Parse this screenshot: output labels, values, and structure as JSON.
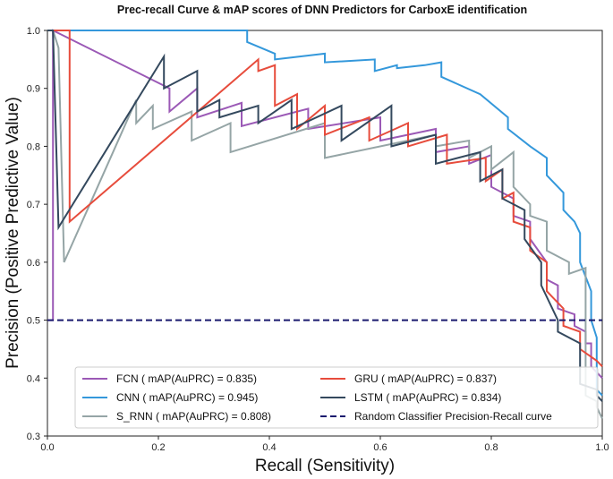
{
  "chart_data": {
    "type": "line",
    "title": "Prec-recall Curve & mAP scores of DNN Predictors for CarboxE identification",
    "xlabel": "Recall (Sensitivity)",
    "ylabel": "Precision (Positive Predictive Value)",
    "xlim": [
      0.0,
      1.0
    ],
    "ylim": [
      0.3,
      1.0
    ],
    "xticks": [
      "0.0",
      "0.2",
      "0.4",
      "0.6",
      "0.8",
      "1.0"
    ],
    "yticks": [
      "0.3",
      "0.4",
      "0.5",
      "0.6",
      "0.7",
      "0.8",
      "0.9",
      "1.0"
    ],
    "grid": false,
    "legend_position": "lower-center",
    "series": [
      {
        "name": "FCN ( mAP(AuPRC) = 0.835)",
        "color": "#9b59b6",
        "x": [
          0.0,
          0.01,
          0.01,
          0.22,
          0.22,
          0.27,
          0.27,
          0.35,
          0.35,
          0.47,
          0.47,
          0.6,
          0.6,
          0.7,
          0.7,
          0.76,
          0.76,
          0.8,
          0.8,
          0.84,
          0.84,
          0.87,
          0.87,
          0.9,
          0.9,
          0.92,
          0.92,
          0.95,
          0.95,
          0.97,
          0.97,
          0.98,
          0.98,
          1.0
        ],
        "y": [
          0.5,
          0.5,
          1.0,
          0.9,
          0.86,
          0.9,
          0.85,
          0.875,
          0.835,
          0.865,
          0.83,
          0.85,
          0.81,
          0.83,
          0.79,
          0.8,
          0.77,
          0.785,
          0.73,
          0.71,
          0.68,
          0.67,
          0.64,
          0.6,
          0.57,
          0.56,
          0.52,
          0.51,
          0.49,
          0.48,
          0.46,
          0.46,
          0.42,
          0.4
        ]
      },
      {
        "name": "CNN ( mAP(AuPRC) = 0.945)",
        "color": "#3498db",
        "x": [
          0.0,
          0.01,
          0.36,
          0.36,
          0.41,
          0.41,
          0.5,
          0.5,
          0.59,
          0.59,
          0.63,
          0.63,
          0.68,
          0.71,
          0.71,
          0.78,
          0.83,
          0.83,
          0.87,
          0.9,
          0.9,
          0.93,
          0.93,
          0.95,
          0.96,
          0.96,
          0.98,
          0.98,
          0.99,
          0.99,
          1.0
        ],
        "y": [
          1.0,
          1.0,
          1.0,
          0.98,
          0.96,
          0.95,
          0.96,
          0.945,
          0.95,
          0.93,
          0.94,
          0.935,
          0.94,
          0.945,
          0.92,
          0.89,
          0.85,
          0.83,
          0.8,
          0.78,
          0.75,
          0.72,
          0.69,
          0.67,
          0.65,
          0.6,
          0.55,
          0.5,
          0.47,
          0.38,
          0.37
        ]
      },
      {
        "name": "S_RNN ( mAP(AuPRC) = 0.808)",
        "color": "#95a5a6",
        "x": [
          0.0,
          0.01,
          0.02,
          0.03,
          0.03,
          0.16,
          0.16,
          0.19,
          0.19,
          0.26,
          0.26,
          0.33,
          0.33,
          0.5,
          0.5,
          0.7,
          0.7,
          0.76,
          0.76,
          0.8,
          0.8,
          0.84,
          0.84,
          0.87,
          0.87,
          0.9,
          0.9,
          0.94,
          0.94,
          0.97,
          0.97,
          0.99,
          0.99,
          1.0
        ],
        "y": [
          1.0,
          1.0,
          0.97,
          0.6,
          0.6,
          0.88,
          0.84,
          0.87,
          0.83,
          0.86,
          0.81,
          0.84,
          0.79,
          0.84,
          0.78,
          0.82,
          0.8,
          0.81,
          0.78,
          0.8,
          0.76,
          0.79,
          0.73,
          0.7,
          0.68,
          0.67,
          0.62,
          0.6,
          0.58,
          0.59,
          0.37,
          0.36,
          0.35,
          0.33
        ]
      },
      {
        "name": "GRU ( mAP(AuPRC) = 0.837)",
        "color": "#e74c3c",
        "x": [
          0.0,
          0.01,
          0.04,
          0.04,
          0.38,
          0.38,
          0.41,
          0.41,
          0.45,
          0.45,
          0.5,
          0.5,
          0.58,
          0.58,
          0.65,
          0.65,
          0.72,
          0.72,
          0.79,
          0.79,
          0.82,
          0.82,
          0.84,
          0.84,
          0.87,
          0.87,
          0.9,
          0.9,
          0.93,
          0.93,
          0.96,
          0.96,
          0.99,
          1.0
        ],
        "y": [
          1.0,
          1.0,
          1.0,
          0.67,
          0.95,
          0.93,
          0.94,
          0.87,
          0.89,
          0.83,
          0.87,
          0.82,
          0.85,
          0.81,
          0.84,
          0.8,
          0.82,
          0.77,
          0.78,
          0.74,
          0.76,
          0.71,
          0.72,
          0.67,
          0.66,
          0.62,
          0.6,
          0.55,
          0.52,
          0.49,
          0.48,
          0.45,
          0.43,
          0.42
        ]
      },
      {
        "name": "LSTM ( mAP(AuPRC) = 0.834)",
        "color": "#34495e",
        "x": [
          0.0,
          0.01,
          0.02,
          0.21,
          0.21,
          0.27,
          0.27,
          0.31,
          0.31,
          0.38,
          0.38,
          0.44,
          0.44,
          0.53,
          0.53,
          0.62,
          0.62,
          0.7,
          0.7,
          0.78,
          0.78,
          0.82,
          0.82,
          0.86,
          0.86,
          0.89,
          0.89,
          0.92,
          0.92,
          0.96,
          0.96,
          0.99,
          0.99,
          1.0
        ],
        "y": [
          1.0,
          1.0,
          0.66,
          0.955,
          0.9,
          0.93,
          0.86,
          0.88,
          0.85,
          0.87,
          0.84,
          0.88,
          0.83,
          0.87,
          0.81,
          0.87,
          0.8,
          0.82,
          0.77,
          0.79,
          0.74,
          0.76,
          0.71,
          0.69,
          0.64,
          0.6,
          0.56,
          0.5,
          0.48,
          0.46,
          0.39,
          0.38,
          0.37,
          0.36
        ]
      },
      {
        "name": "Random Classifier Precision-Recall curve",
        "color": "#1a1a6e",
        "dashed": true,
        "x": [
          0.0,
          1.0
        ],
        "y": [
          0.5,
          0.5
        ]
      }
    ]
  }
}
